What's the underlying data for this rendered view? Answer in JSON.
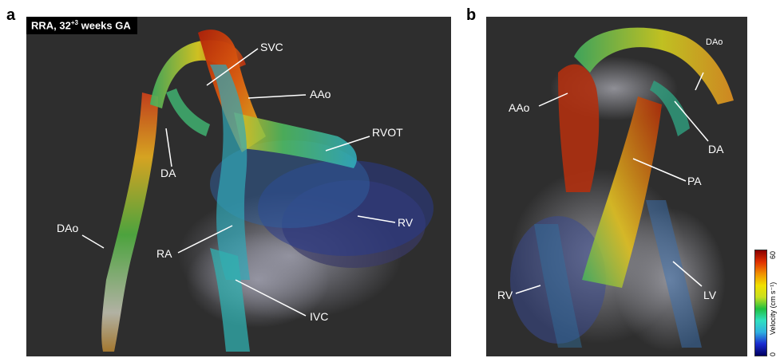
{
  "panel_a": {
    "letter": "a",
    "title_main": "RRA, 32",
    "title_sup": "+3",
    "title_rest": " weeks GA",
    "labels": {
      "svc": "SVC",
      "aao": "AAo",
      "rvot": "RVOT",
      "da": "DA",
      "rv": "RV",
      "dao": "DAo",
      "ra": "RA",
      "ivc": "IVC"
    }
  },
  "panel_b": {
    "letter": "b",
    "labels": {
      "dao": "DAo",
      "aao": "AAo",
      "da": "DA",
      "pa": "PA",
      "rv": "RV",
      "lv": "LV"
    }
  },
  "colorbar": {
    "min": "0",
    "max": "60",
    "label": "Velocity (cm s⁻¹)",
    "colors": [
      "#000060",
      "#1a2bd0",
      "#2fb0e0",
      "#30e0c0",
      "#20c040",
      "#c8e020",
      "#f0e000",
      "#f09000",
      "#e03000",
      "#8a0000"
    ]
  }
}
